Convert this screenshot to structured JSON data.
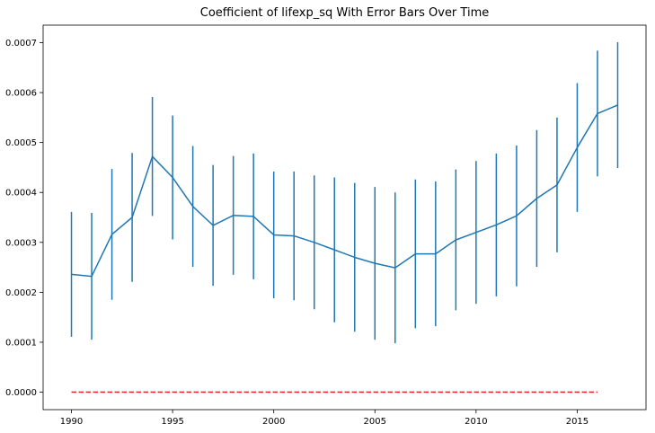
{
  "chart_data": {
    "type": "line",
    "title": "Coefficient of lifexp_sq With Error Bars Over Time",
    "xlabel": "",
    "ylabel": "",
    "xlim": [
      1988.6,
      2018.4
    ],
    "ylim": [
      -3.5e-05,
      0.000735
    ],
    "xticks": [
      1990,
      1995,
      2000,
      2005,
      2010,
      2015
    ],
    "yticks": [
      0.0,
      0.0001,
      0.0002,
      0.0003,
      0.0004,
      0.0005,
      0.0006,
      0.0007
    ],
    "ytick_labels": [
      "0.0000",
      "0.0001",
      "0.0002",
      "0.0003",
      "0.0004",
      "0.0005",
      "0.0006",
      "0.0007"
    ],
    "grid": false,
    "series": [
      {
        "x": [
          1990,
          1991,
          1992,
          1993,
          1994,
          1995,
          1996,
          1997,
          1998,
          1999,
          2000,
          2001,
          2002,
          2003,
          2004,
          2005,
          2006,
          2007,
          2008,
          2009,
          2010,
          2011,
          2012,
          2013,
          2014,
          2015,
          2016,
          2017
        ],
        "y": [
          0.000236,
          0.000232,
          0.000316,
          0.00035,
          0.000472,
          0.00043,
          0.000372,
          0.000334,
          0.000354,
          0.000352,
          0.000315,
          0.000313,
          0.0003,
          0.000285,
          0.00027,
          0.000258,
          0.000249,
          0.000277,
          0.000277,
          0.000305,
          0.00032,
          0.000335,
          0.000353,
          0.000388,
          0.000415,
          0.00049,
          0.000558,
          0.000575
        ],
        "err": [
          0.000125,
          0.000127,
          0.000131,
          0.000129,
          0.000119,
          0.000124,
          0.000121,
          0.000121,
          0.000119,
          0.000126,
          0.000127,
          0.000129,
          0.000134,
          0.000145,
          0.000149,
          0.000153,
          0.000151,
          0.000149,
          0.000145,
          0.000141,
          0.000143,
          0.000143,
          0.000141,
          0.000137,
          0.000135,
          0.000129,
          0.000126,
          0.000126
        ],
        "color": "#1f77b4"
      }
    ],
    "reference_line": {
      "y": 0,
      "x_range": [
        1990,
        2016
      ],
      "color": "#d62728",
      "style": "dashed"
    }
  }
}
